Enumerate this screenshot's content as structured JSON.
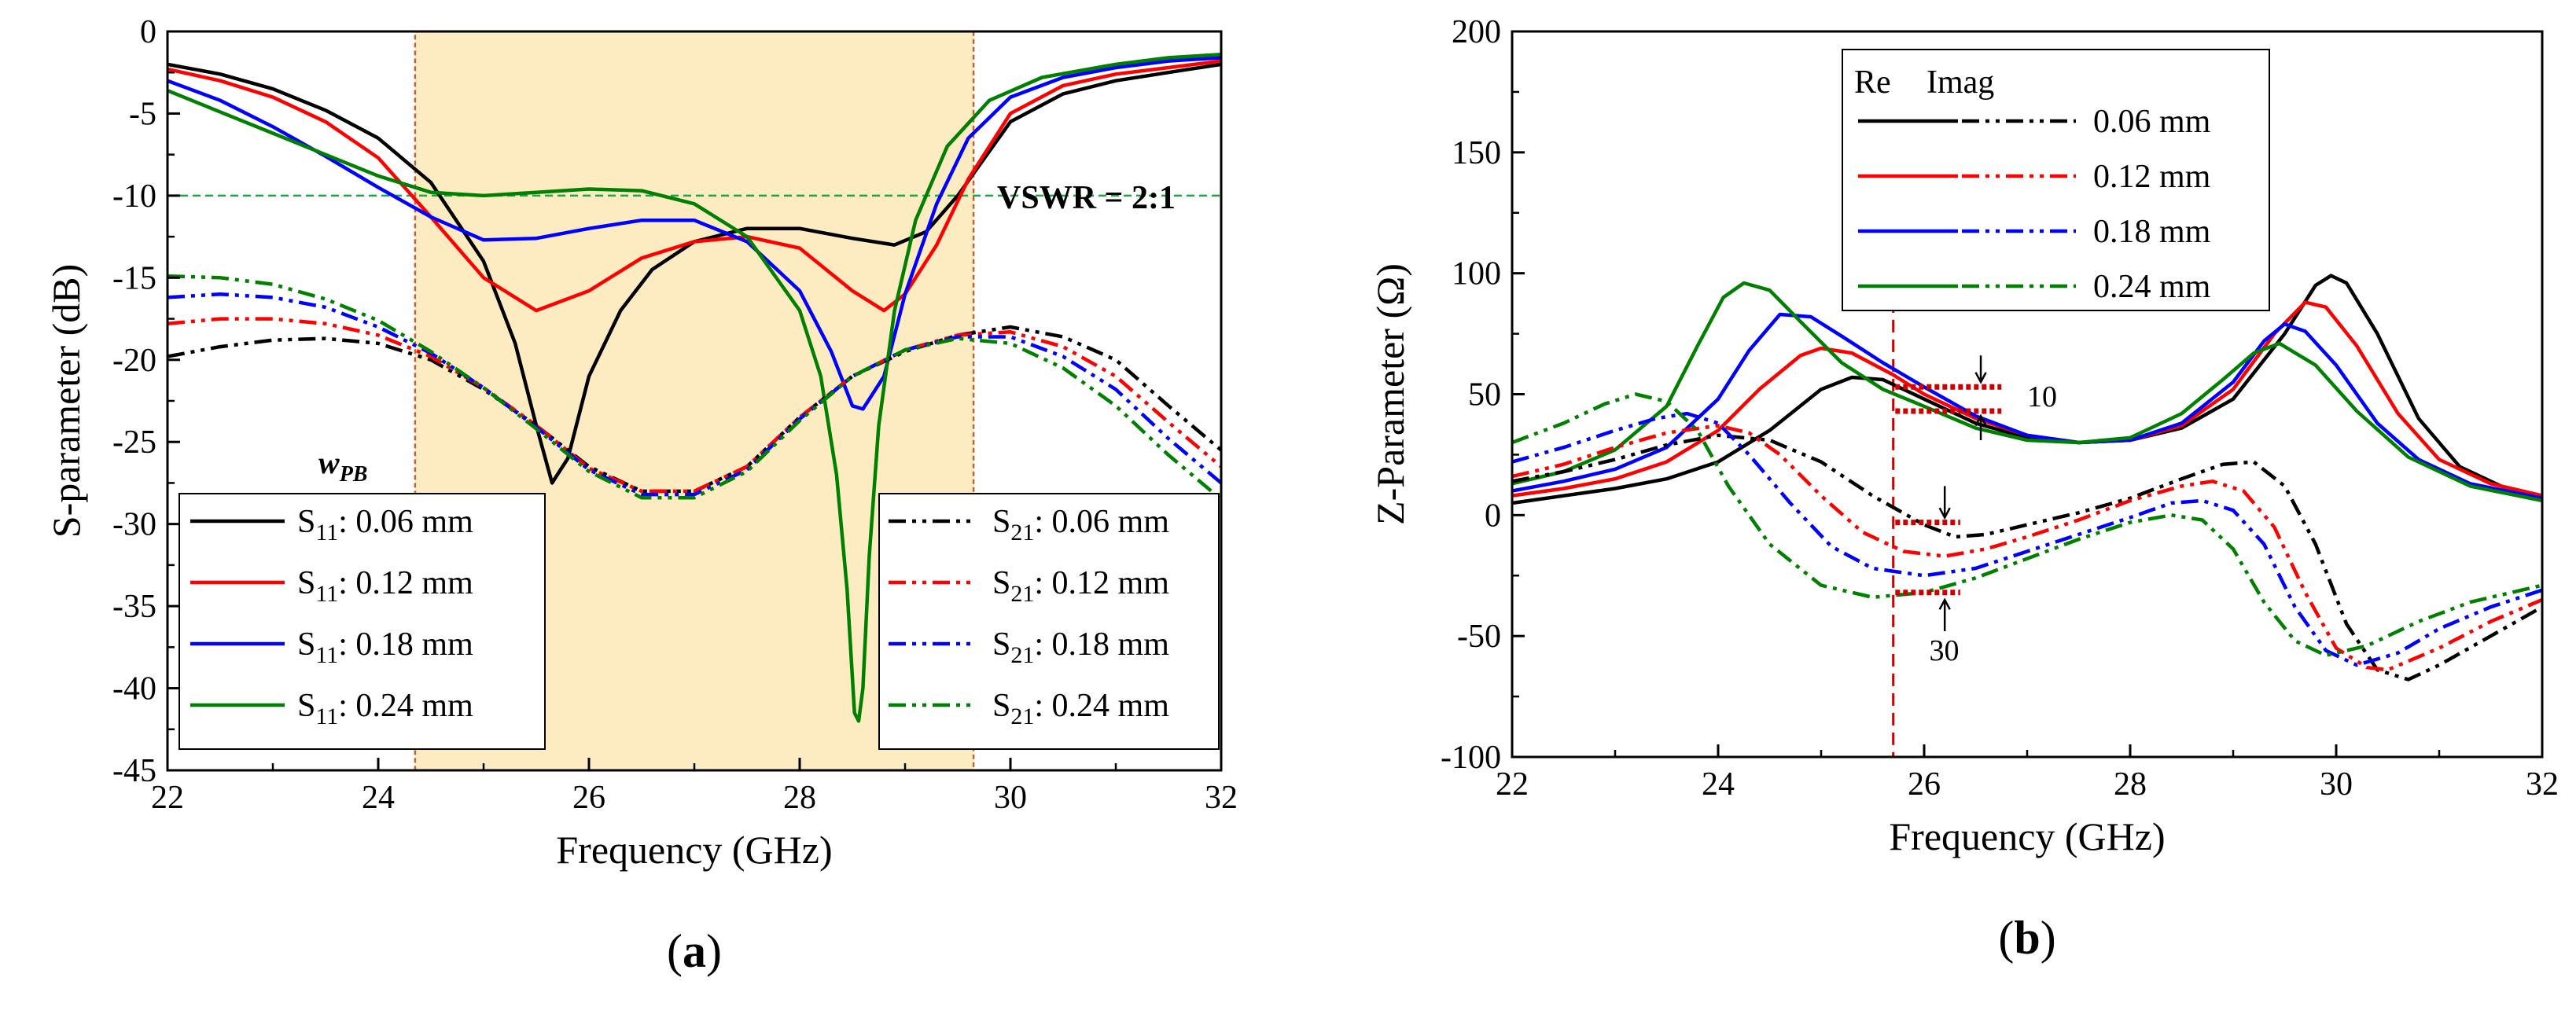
{
  "chart_data": [
    {
      "id": "a",
      "type": "line",
      "panel_label": "(a)",
      "xlabel": "Frequency (GHz)",
      "ylabel": "S-parameter (dB)",
      "xlim": [
        22,
        32
      ],
      "ylim": [
        -45,
        0
      ],
      "xticks": [
        "22",
        "24",
        "26",
        "28",
        "30",
        "32"
      ],
      "yticks": [
        "0",
        "-5",
        "-10",
        "-15",
        "-20",
        "-25",
        "-30",
        "-35",
        "-40",
        "-45"
      ],
      "shaded_band": {
        "x": [
          24.35,
          29.65
        ],
        "color": "#fdecc2",
        "border_color": "#c8602a"
      },
      "reference_line": {
        "y": -10,
        "label": "VSWR = 2:1",
        "color": "#1aa64a"
      },
      "annotation": "w_PB",
      "annotation_main": "w",
      "annotation_sub": "PB",
      "legend_left": {
        "prefix": "S",
        "sub": "11",
        "entries": [
          ": 0.06 mm",
          ": 0.12 mm",
          ": 0.18 mm",
          ": 0.24 mm"
        ]
      },
      "legend_right": {
        "prefix": "S",
        "sub": "21",
        "entries": [
          ": 0.06 mm",
          ": 0.12 mm",
          ": 0.18 mm",
          ": 0.24 mm"
        ]
      },
      "series": [
        {
          "name": "S11: 0.06 mm",
          "color": "#000000",
          "dash": "solid",
          "x": [
            22,
            22.5,
            23,
            23.5,
            24,
            24.5,
            25,
            25.3,
            25.5,
            25.65,
            25.8,
            26,
            26.3,
            26.6,
            27,
            27.5,
            28,
            28.5,
            28.9,
            29.2,
            29.5,
            30,
            30.5,
            31,
            31.5,
            32
          ],
          "y": [
            -2,
            -2.6,
            -3.5,
            -4.8,
            -6.5,
            -9.2,
            -14,
            -19,
            -24,
            -27.5,
            -26,
            -21,
            -17,
            -14.5,
            -12.8,
            -12,
            -12,
            -12.6,
            -13,
            -12.2,
            -10,
            -5.5,
            -3.8,
            -3,
            -2.5,
            -2
          ]
        },
        {
          "name": "S11: 0.12 mm",
          "color": "#ff0000",
          "dash": "solid",
          "x": [
            22,
            22.5,
            23,
            23.5,
            24,
            24.5,
            25,
            25.5,
            26,
            26.5,
            27,
            27.5,
            28,
            28.5,
            28.8,
            29,
            29.3,
            29.6,
            30,
            30.5,
            31,
            31.5,
            32
          ],
          "y": [
            -2.3,
            -3,
            -4,
            -5.5,
            -7.7,
            -11.3,
            -15,
            -17,
            -15.8,
            -13.8,
            -12.8,
            -12.5,
            -13.2,
            -15.8,
            -17,
            -16,
            -13,
            -9,
            -5,
            -3.3,
            -2.6,
            -2.2,
            -1.8
          ]
        },
        {
          "name": "S11: 0.18 mm",
          "color": "#0000ff",
          "dash": "solid",
          "x": [
            22,
            22.5,
            23,
            23.5,
            24,
            24.5,
            25,
            25.5,
            26,
            26.5,
            27,
            27.5,
            28,
            28.3,
            28.5,
            28.6,
            28.8,
            29,
            29.3,
            29.6,
            30,
            30.5,
            31,
            31.5,
            32
          ],
          "y": [
            -3,
            -4.2,
            -5.8,
            -7.6,
            -9.5,
            -11.3,
            -12.7,
            -12.6,
            -12,
            -11.5,
            -11.5,
            -12.8,
            -15.8,
            -19.5,
            -22.8,
            -23,
            -21,
            -16,
            -10.5,
            -6.5,
            -4,
            -2.8,
            -2.2,
            -1.8,
            -1.6
          ]
        },
        {
          "name": "S11: 0.24 mm",
          "color": "#008000",
          "dash": "solid",
          "x": [
            22,
            22.5,
            23,
            23.5,
            24,
            24.5,
            25,
            25.5,
            26,
            26.5,
            27,
            27.5,
            28,
            28.2,
            28.35,
            28.45,
            28.52,
            28.56,
            28.6,
            28.66,
            28.75,
            28.9,
            29.1,
            29.4,
            29.8,
            30.3,
            31,
            31.5,
            32
          ],
          "y": [
            -3.6,
            -4.9,
            -6.2,
            -7.5,
            -8.8,
            -9.8,
            -10,
            -9.8,
            -9.6,
            -9.7,
            -10.5,
            -12.5,
            -17,
            -21,
            -27,
            -34,
            -41.5,
            -42,
            -40,
            -32,
            -24,
            -17,
            -11.5,
            -7,
            -4.2,
            -2.8,
            -2,
            -1.6,
            -1.4
          ]
        },
        {
          "name": "S21: 0.06 mm",
          "color": "#000000",
          "dash": "dashdotdot",
          "x": [
            22,
            22.5,
            23,
            23.5,
            24,
            24.5,
            25,
            25.5,
            26,
            26.5,
            27,
            27.5,
            28,
            28.5,
            29,
            29.5,
            30,
            30.5,
            31,
            31.5,
            32
          ],
          "y": [
            -19.8,
            -19.2,
            -18.8,
            -18.7,
            -19,
            -20,
            -21.8,
            -24,
            -26.5,
            -28,
            -28,
            -26.5,
            -23.5,
            -21,
            -19.5,
            -18.5,
            -18,
            -18.6,
            -20,
            -22.8,
            -25.5
          ]
        },
        {
          "name": "S21: 0.12 mm",
          "color": "#ff0000",
          "dash": "dashdotdot",
          "x": [
            22,
            22.5,
            23,
            23.5,
            24,
            24.5,
            25,
            25.5,
            26,
            26.5,
            27,
            27.5,
            28,
            28.5,
            29,
            29.5,
            30,
            30.5,
            31,
            31.5,
            32
          ],
          "y": [
            -17.8,
            -17.5,
            -17.5,
            -17.8,
            -18.5,
            -19.8,
            -21.7,
            -24,
            -26.6,
            -28,
            -28,
            -26.5,
            -23.5,
            -21,
            -19.4,
            -18.5,
            -18.3,
            -19.2,
            -21,
            -23.8,
            -26.5
          ]
        },
        {
          "name": "S21: 0.18 mm",
          "color": "#0000ff",
          "dash": "dashdotdot",
          "x": [
            22,
            22.5,
            23,
            23.5,
            24,
            24.5,
            25,
            25.5,
            26,
            26.5,
            27,
            27.5,
            28,
            28.5,
            29,
            29.5,
            30,
            30.5,
            31,
            31.5,
            32
          ],
          "y": [
            -16.2,
            -16,
            -16.2,
            -16.8,
            -18,
            -19.6,
            -21.7,
            -24.1,
            -26.7,
            -28.2,
            -28.2,
            -26.7,
            -23.6,
            -21,
            -19.4,
            -18.6,
            -18.6,
            -19.8,
            -21.8,
            -24.8,
            -27.5
          ]
        },
        {
          "name": "S21: 0.24 mm",
          "color": "#008000",
          "dash": "dashdotdot",
          "x": [
            22,
            22.5,
            23,
            23.5,
            24,
            24.5,
            25,
            25.5,
            26,
            26.5,
            27,
            27.5,
            28,
            28.5,
            29,
            29.5,
            30,
            30.5,
            31,
            31.5,
            32
          ],
          "y": [
            -14.9,
            -15,
            -15.4,
            -16.3,
            -17.6,
            -19.5,
            -21.7,
            -24.2,
            -26.8,
            -28.4,
            -28.4,
            -26.8,
            -23.7,
            -21,
            -19.4,
            -18.7,
            -19,
            -20.5,
            -22.8,
            -25.8,
            -28.5
          ]
        }
      ]
    },
    {
      "id": "b",
      "type": "line",
      "panel_label": "(b)",
      "xlabel": "Frequency (GHz)",
      "ylabel": "Z-Parameter (Ω)",
      "xlim": [
        22,
        32
      ],
      "ylim": [
        -100,
        200
      ],
      "xticks": [
        "22",
        "24",
        "26",
        "28",
        "30",
        "32"
      ],
      "yticks": [
        "200",
        "150",
        "100",
        "50",
        "0",
        "-50",
        "-100"
      ],
      "reference_vline": {
        "x": 25.7,
        "color": "#cc0000"
      },
      "legend_header": {
        "re": "Re",
        "imag": "Imag"
      },
      "legend_entries": [
        "0.06 mm",
        "0.12 mm",
        "0.18 mm",
        "0.24 mm"
      ],
      "annotations": {
        "upper": "10",
        "lower": "30"
      },
      "series": [
        {
          "name": "Re 0.06 mm",
          "color": "#000000",
          "dash": "solid",
          "x": [
            22,
            22.5,
            23,
            23.5,
            24,
            24.5,
            25,
            25.3,
            25.6,
            26,
            26.5,
            27,
            27.5,
            28,
            28.5,
            29,
            29.5,
            29.8,
            29.95,
            30.1,
            30.4,
            30.8,
            31.2,
            31.6,
            32
          ],
          "y": [
            5,
            8,
            11,
            15,
            22,
            35,
            52,
            57,
            56,
            48,
            38,
            32,
            30,
            31,
            36,
            48,
            75,
            95,
            99,
            96,
            75,
            40,
            20,
            12,
            8
          ]
        },
        {
          "name": "Re 0.12 mm",
          "color": "#ff0000",
          "dash": "solid",
          "x": [
            22,
            22.5,
            23,
            23.5,
            24,
            24.4,
            24.8,
            25,
            25.3,
            25.7,
            26,
            26.5,
            27,
            27.5,
            28,
            28.5,
            29,
            29.4,
            29.7,
            29.9,
            30.2,
            30.6,
            31,
            31.5,
            32
          ],
          "y": [
            8,
            11,
            15,
            22,
            35,
            52,
            66,
            69,
            67,
            58,
            50,
            40,
            33,
            30,
            31,
            37,
            52,
            75,
            88,
            86,
            70,
            42,
            23,
            13,
            8
          ]
        },
        {
          "name": "Re 0.18 mm",
          "color": "#0000ff",
          "dash": "solid",
          "x": [
            22,
            22.5,
            23,
            23.5,
            24,
            24.3,
            24.6,
            24.9,
            25.2,
            25.6,
            26,
            26.5,
            27,
            27.5,
            28,
            28.5,
            29,
            29.3,
            29.5,
            29.7,
            30,
            30.4,
            30.8,
            31.3,
            32
          ],
          "y": [
            10,
            14,
            19,
            28,
            48,
            68,
            83,
            82,
            74,
            63,
            53,
            41,
            33,
            30,
            31,
            38,
            55,
            72,
            79,
            76,
            62,
            38,
            23,
            13,
            7
          ]
        },
        {
          "name": "Re 0.24 mm",
          "color": "#008000",
          "dash": "solid",
          "x": [
            22,
            22.5,
            23,
            23.5,
            23.8,
            24.05,
            24.25,
            24.5,
            24.8,
            25.2,
            25.6,
            26,
            26.5,
            27,
            27.5,
            28,
            28.5,
            28.9,
            29.2,
            29.45,
            29.8,
            30.2,
            30.7,
            31.3,
            32
          ],
          "y": [
            13,
            18,
            27,
            45,
            70,
            90,
            96,
            93,
            80,
            63,
            52,
            45,
            36,
            31,
            30,
            32,
            42,
            56,
            67,
            71,
            62,
            43,
            24,
            12,
            6
          ]
        },
        {
          "name": "Imag 0.06 mm",
          "color": "#000000",
          "dash": "dashdotdot",
          "x": [
            22,
            22.5,
            23,
            23.5,
            24,
            24.5,
            25,
            25.5,
            26,
            26.3,
            26.6,
            27,
            27.5,
            28,
            28.5,
            28.9,
            29.2,
            29.5,
            29.8,
            30.1,
            30.4,
            30.7,
            31,
            31.5,
            32
          ],
          "y": [
            14,
            18,
            23,
            29,
            33,
            31,
            22,
            8,
            -4,
            -9,
            -8,
            -4,
            1,
            7,
            15,
            21,
            22,
            12,
            -12,
            -45,
            -64,
            -68,
            -62,
            -50,
            -38
          ]
        },
        {
          "name": "Imag 0.12 mm",
          "color": "#ff0000",
          "dash": "dashdotdot",
          "x": [
            22,
            22.5,
            23,
            23.5,
            24,
            24.3,
            24.6,
            25,
            25.4,
            25.8,
            26.2,
            26.6,
            27,
            27.5,
            28,
            28.5,
            28.8,
            29.1,
            29.4,
            29.7,
            30,
            30.3,
            30.5,
            31,
            31.5,
            32
          ],
          "y": [
            16,
            21,
            28,
            34,
            37,
            34,
            25,
            8,
            -7,
            -15,
            -17,
            -14,
            -9,
            -2,
            6,
            12,
            14,
            10,
            -5,
            -32,
            -55,
            -63,
            -64,
            -55,
            -44,
            -35
          ]
        },
        {
          "name": "Imag 0.18 mm",
          "color": "#0000ff",
          "dash": "dashdotdot",
          "x": [
            22,
            22.5,
            23,
            23.4,
            23.7,
            24,
            24.3,
            24.7,
            25.1,
            25.5,
            26,
            26.5,
            27,
            27.5,
            28,
            28.4,
            28.7,
            29,
            29.3,
            29.6,
            29.9,
            30.2,
            30.6,
            31,
            31.5,
            32
          ],
          "y": [
            22,
            28,
            35,
            40,
            42,
            38,
            25,
            5,
            -13,
            -22,
            -25,
            -22,
            -15,
            -8,
            -1,
            5,
            6,
            2,
            -12,
            -38,
            -56,
            -62,
            -57,
            -47,
            -38,
            -31
          ]
        },
        {
          "name": "Imag 0.24 mm",
          "color": "#008000",
          "dash": "dashdotdot",
          "x": [
            22,
            22.5,
            22.9,
            23.2,
            23.5,
            23.8,
            24.1,
            24.5,
            25,
            25.5,
            26,
            26.5,
            27,
            27.5,
            28,
            28.4,
            28.7,
            29,
            29.3,
            29.6,
            29.9,
            30.3,
            30.8,
            31.3,
            32
          ],
          "y": [
            30,
            38,
            46,
            50,
            47,
            35,
            12,
            -12,
            -29,
            -34,
            -32,
            -26,
            -18,
            -10,
            -3,
            0,
            -2,
            -14,
            -36,
            -52,
            -58,
            -54,
            -44,
            -36,
            -29
          ]
        }
      ]
    }
  ]
}
